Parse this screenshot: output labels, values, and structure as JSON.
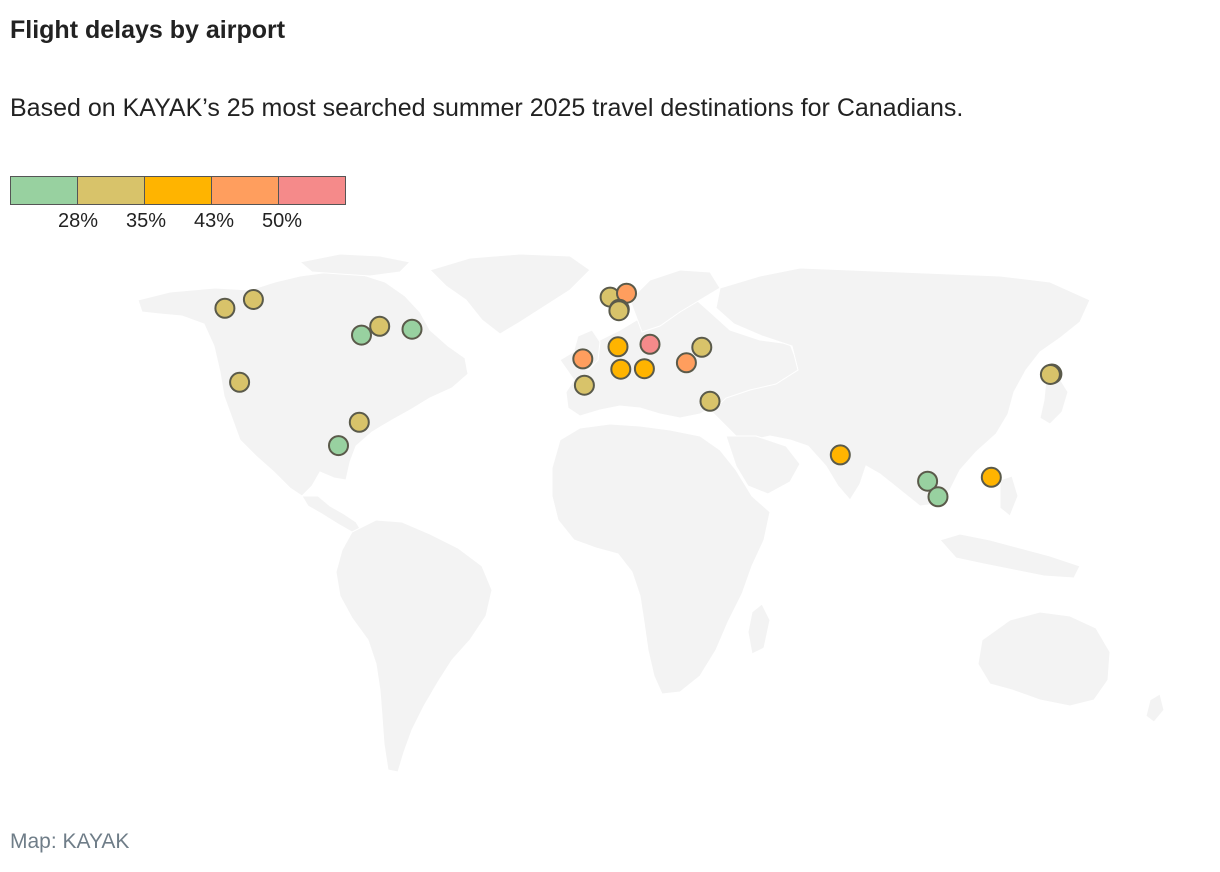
{
  "header": {
    "title": "Flight delays by airport",
    "subtitle": "Based on KAYAK’s 25 most searched summer 2025 travel destinations for Canadians."
  },
  "legend": {
    "colors": [
      "#98d1a0",
      "#d8c36a",
      "#ffb400",
      "#ff9e5e",
      "#f58a8a"
    ],
    "ticks": [
      "28%",
      "35%",
      "43%",
      "50%"
    ]
  },
  "source": "Map: KAYAK",
  "map_data": {
    "type": "symbol-map",
    "projection": "equirectangular-like world map",
    "color_scale": {
      "thresholds": [
        28,
        35,
        43,
        50
      ],
      "unit": "% of flights delayed"
    },
    "points": [
      {
        "lon": -123.1,
        "lat": 49.2,
        "color": "#d8c36a"
      },
      {
        "lon": -114.0,
        "lat": 51.0,
        "color": "#d8c36a"
      },
      {
        "lon": -118.4,
        "lat": 34.0,
        "color": "#d8c36a"
      },
      {
        "lon": -79.6,
        "lat": 43.7,
        "color": "#98d1a0"
      },
      {
        "lon": -73.8,
        "lat": 45.5,
        "color": "#d8c36a"
      },
      {
        "lon": -63.5,
        "lat": 44.9,
        "color": "#98d1a0"
      },
      {
        "lon": -80.3,
        "lat": 25.8,
        "color": "#d8c36a"
      },
      {
        "lon": -86.9,
        "lat": 21.0,
        "color": "#98d1a0"
      },
      {
        "lon": -0.4,
        "lat": 51.5,
        "color": "#d8c36a"
      },
      {
        "lon": 4.8,
        "lat": 52.3,
        "color": "#ff9e5e"
      },
      {
        "lon": 2.5,
        "lat": 49.0,
        "color": "#ffb400"
      },
      {
        "lon": 2.4,
        "lat": 48.7,
        "color": "#d8c36a"
      },
      {
        "lon": -9.1,
        "lat": 38.8,
        "color": "#ff9e5e"
      },
      {
        "lon": -8.6,
        "lat": 33.4,
        "color": "#d8c36a"
      },
      {
        "lon": 2.1,
        "lat": 41.3,
        "color": "#ffb400"
      },
      {
        "lon": 3.0,
        "lat": 36.7,
        "color": "#ffb400"
      },
      {
        "lon": 12.3,
        "lat": 41.8,
        "color": "#f58a8a"
      },
      {
        "lon": 10.5,
        "lat": 36.8,
        "color": "#ffb400"
      },
      {
        "lon": 23.9,
        "lat": 38.0,
        "color": "#ff9e5e"
      },
      {
        "lon": 28.8,
        "lat": 41.2,
        "color": "#d8c36a"
      },
      {
        "lon": 31.4,
        "lat": 30.1,
        "color": "#d8c36a"
      },
      {
        "lon": 72.9,
        "lat": 19.1,
        "color": "#ffb400"
      },
      {
        "lon": 100.7,
        "lat": 13.7,
        "color": "#98d1a0"
      },
      {
        "lon": 104.0,
        "lat": 10.5,
        "color": "#98d1a0"
      },
      {
        "lon": 121.0,
        "lat": 14.5,
        "color": "#ffb400"
      },
      {
        "lon": 140.3,
        "lat": 35.7,
        "color": "#d8c36a"
      },
      {
        "lon": 139.8,
        "lat": 35.6,
        "color": "#d8c36a"
      }
    ]
  }
}
